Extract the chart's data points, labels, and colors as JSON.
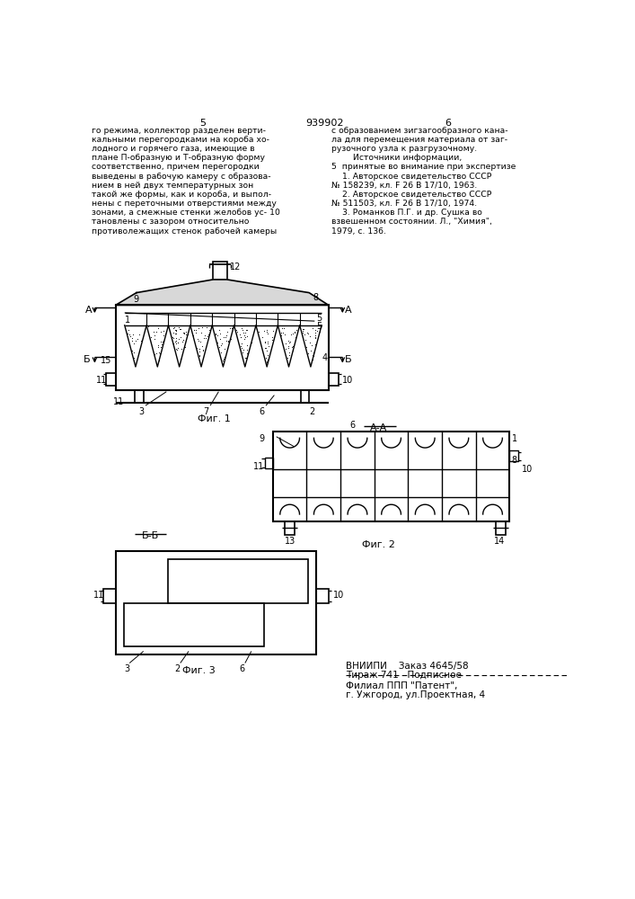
{
  "bg_color": "#ffffff",
  "page_num_left": "5",
  "page_num_center": "939902",
  "page_num_right": "6",
  "left_col": [
    "го режима, коллектор разделен верти-",
    "кальными перегородками на короба хо-",
    "лодного и горячего газа, имеющие в",
    "плане П-образную и Т-образную форму",
    "соответственно, причем перегородки",
    "выведены в рабочую камеру с образова-",
    "нием в ней двух температурных зон",
    "такой же формы, как и короба, и выпол-",
    "нены с переточными отверстиями между",
    "зонами, а смежные стенки желобов ус- 10",
    "тановлены с зазором относительно",
    "противолежащих стенок рабочей камеры"
  ],
  "right_col": [
    "с образованием зигзагообразного кана-",
    "ла для перемещения материала от заг-",
    "рузочного узла к разгрузочному.",
    "        Источники информации,",
    "5  принятые во внимание при экспертизе",
    "    1. Авторское свидетельство СССР",
    "№ 158239, кл. F 26 В 17/10, 1963.",
    "    2. Авторское свидетельство СССР",
    "№ 511503, кл. F 26 В 17/10, 1974.",
    "    3. Романков П.Г. и др. Сушка во",
    "взвешенном состоянии. Л., \"Химия\",",
    "1979, с. 136."
  ],
  "bottom1": "ВНИИПИ    Заказ 4645/58",
  "bottom2": "Тираж 741   Подписное",
  "bottom3": "Филиал ППП \"Патент\",",
  "bottom4": "г. Ужгород, ул.Проектная, 4"
}
